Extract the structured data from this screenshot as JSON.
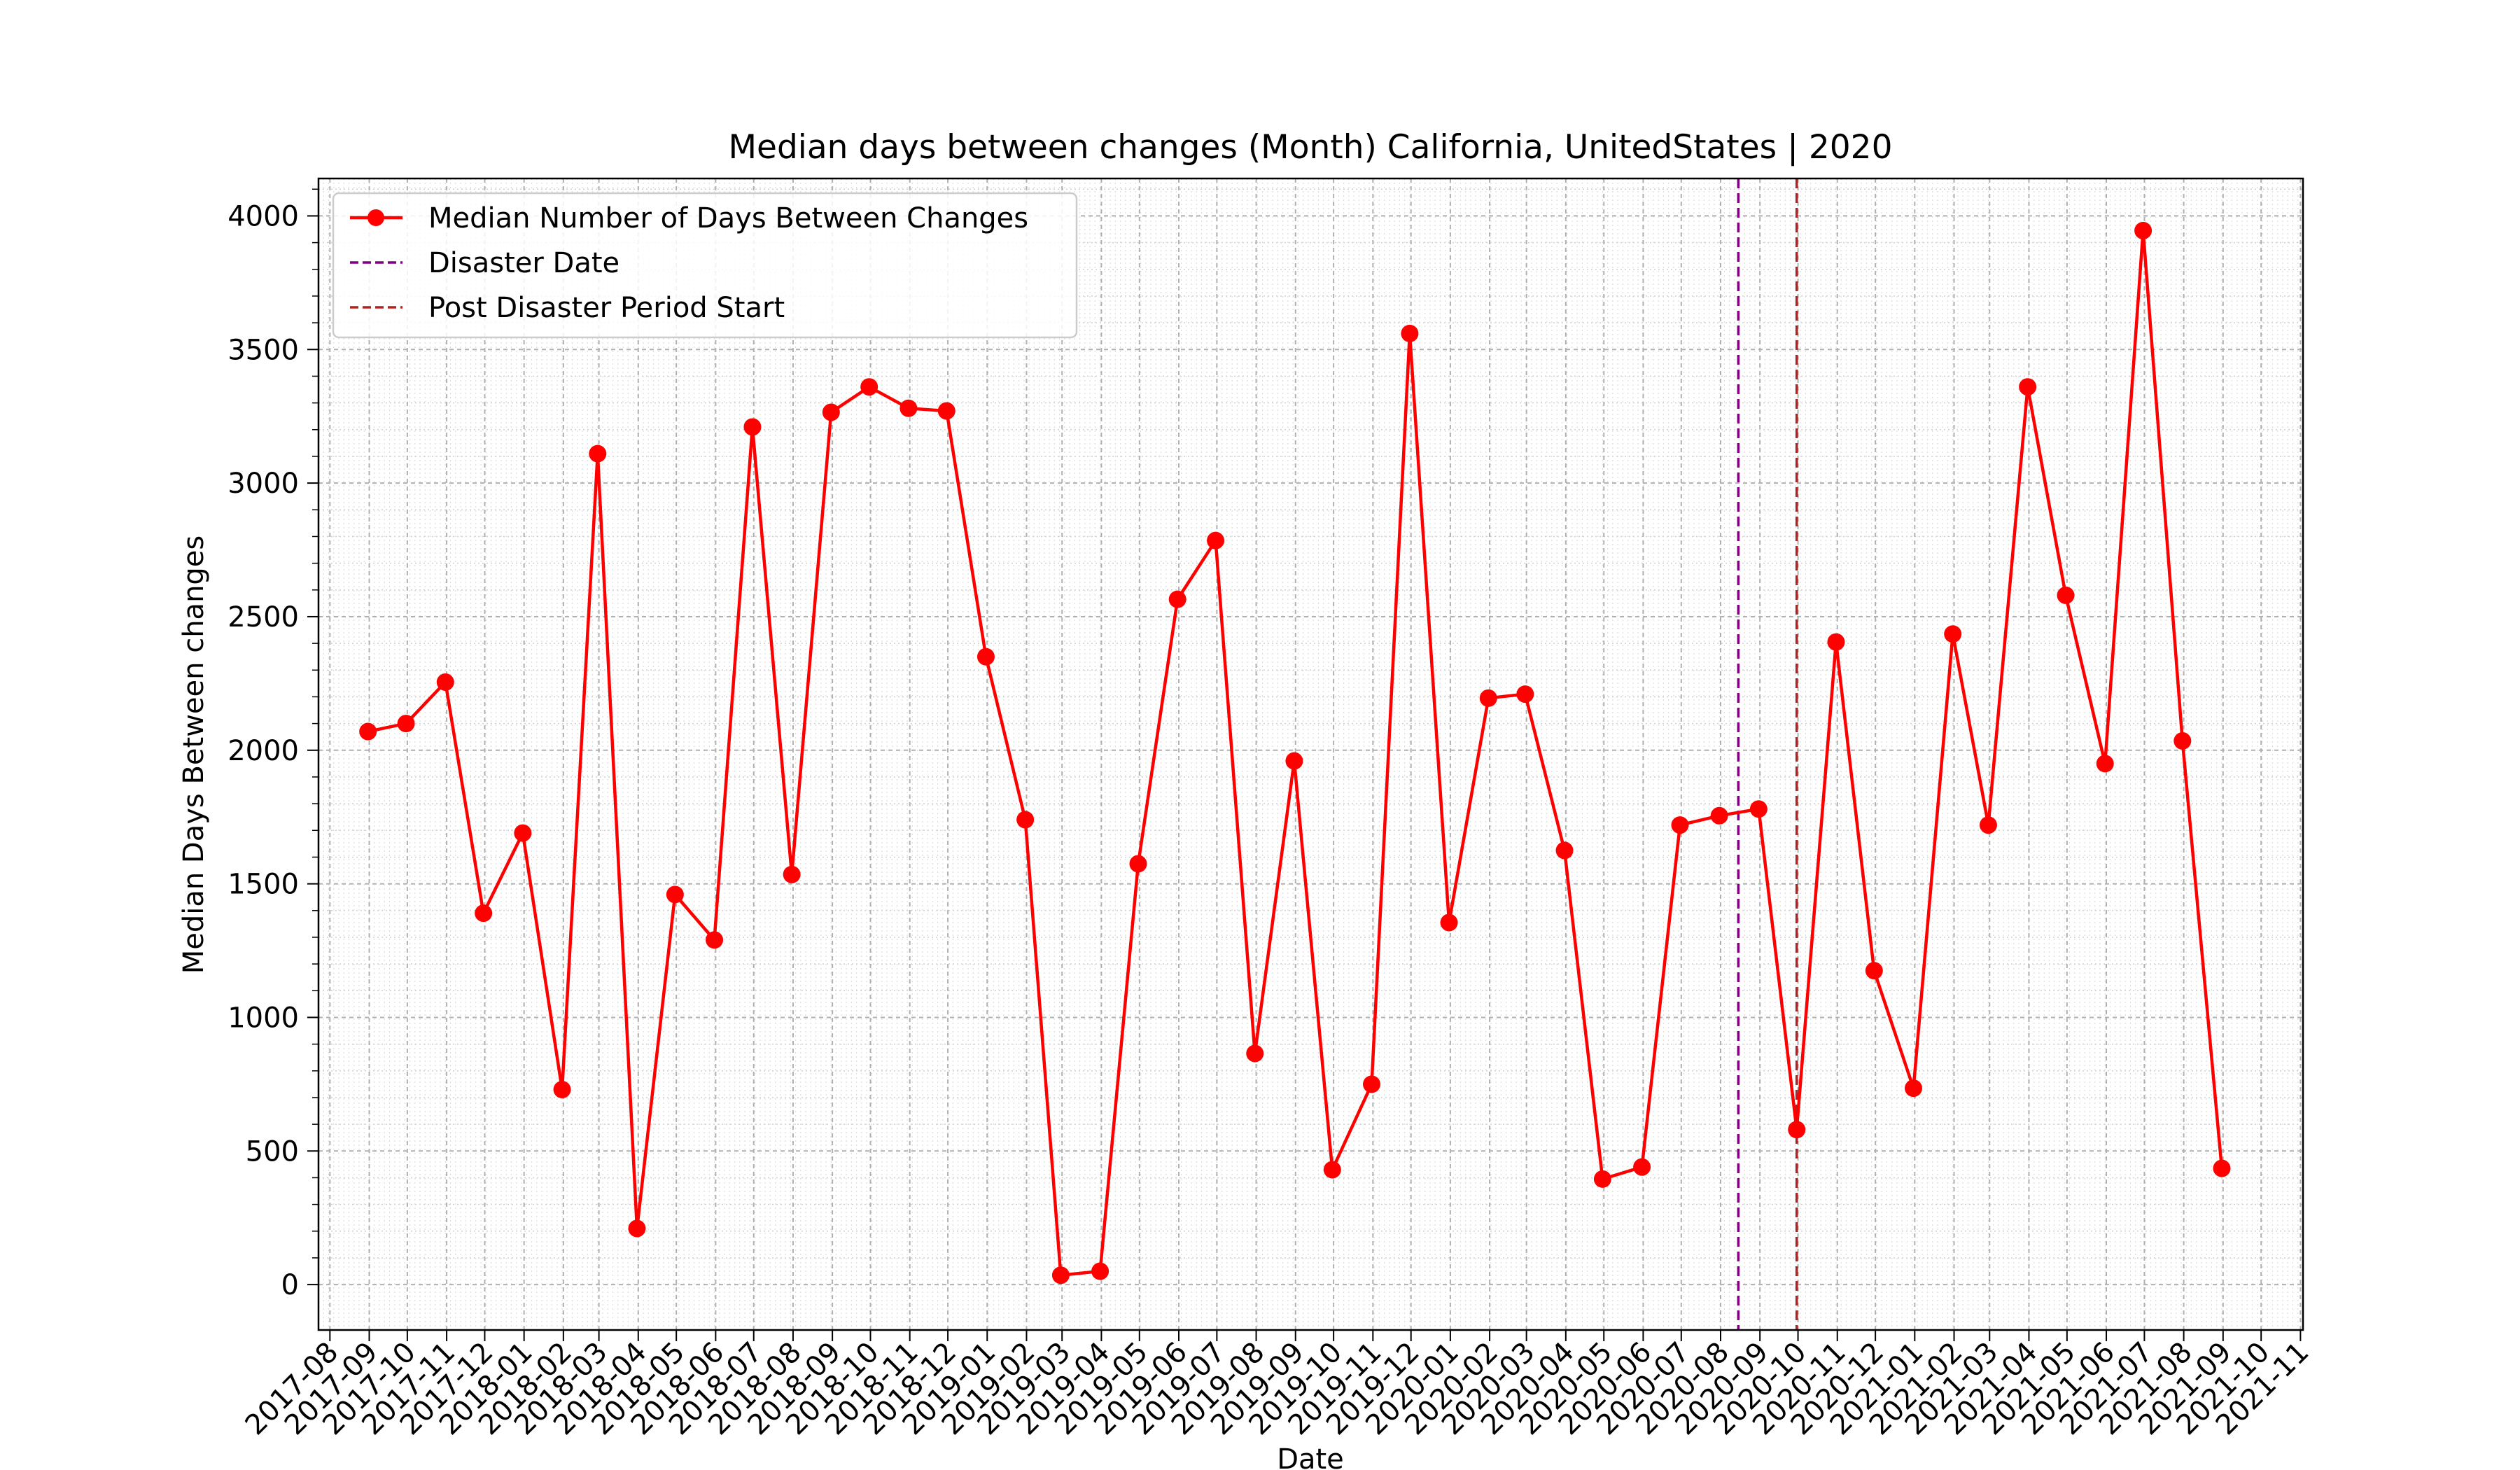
{
  "chart_data": {
    "type": "line",
    "title": "Median days between changes (Month) California, UnitedStates | 2020",
    "xlabel": "Date",
    "ylabel": "Median Days Between changes",
    "xlim": [
      "2017-07-23",
      "2021-11-03"
    ],
    "ylim": [
      -170,
      4140
    ],
    "yticks": [
      0,
      500,
      1000,
      1500,
      2000,
      2500,
      3000,
      3500,
      4000
    ],
    "xticks": [
      "2017-08",
      "2017-09",
      "2017-10",
      "2017-11",
      "2017-12",
      "2018-01",
      "2018-02",
      "2018-03",
      "2018-04",
      "2018-05",
      "2018-06",
      "2018-07",
      "2018-08",
      "2018-09",
      "2018-10",
      "2018-11",
      "2018-12",
      "2019-01",
      "2019-02",
      "2019-03",
      "2019-04",
      "2019-05",
      "2019-06",
      "2019-07",
      "2019-08",
      "2019-09",
      "2019-10",
      "2019-11",
      "2019-12",
      "2020-01",
      "2020-02",
      "2020-03",
      "2020-04",
      "2020-05",
      "2020-06",
      "2020-07",
      "2020-08",
      "2020-09",
      "2020-10",
      "2020-11",
      "2020-12",
      "2021-01",
      "2021-02",
      "2021-03",
      "2021-04",
      "2021-05",
      "2021-06",
      "2021-07",
      "2021-08",
      "2021-09",
      "2021-10",
      "2021-11"
    ],
    "grid": true,
    "legend_position": "top-left",
    "series": [
      {
        "name": "Median Number of Days Between Changes",
        "color": "#ff0000",
        "marker": "circle",
        "x": [
          "2017-08-31",
          "2017-09-30",
          "2017-10-31",
          "2017-11-30",
          "2017-12-31",
          "2018-01-31",
          "2018-02-28",
          "2018-03-31",
          "2018-04-30",
          "2018-05-31",
          "2018-06-30",
          "2018-07-31",
          "2018-08-31",
          "2018-09-30",
          "2018-10-31",
          "2018-11-30",
          "2018-12-31",
          "2019-01-31",
          "2019-02-28",
          "2019-03-31",
          "2019-04-30",
          "2019-05-31",
          "2019-06-30",
          "2019-07-31",
          "2019-08-31",
          "2019-09-30",
          "2019-10-31",
          "2019-11-30",
          "2019-12-31",
          "2020-01-31",
          "2020-02-29",
          "2020-03-31",
          "2020-04-30",
          "2020-05-31",
          "2020-06-30",
          "2020-07-31",
          "2020-08-31",
          "2020-09-30",
          "2020-10-31",
          "2020-11-30",
          "2020-12-31",
          "2021-01-31",
          "2021-02-28",
          "2021-03-31",
          "2021-04-30",
          "2021-05-31",
          "2021-06-30",
          "2021-07-31",
          "2021-08-31"
        ],
        "y": [
          2070,
          2100,
          2255,
          1390,
          1690,
          730,
          3110,
          210,
          1460,
          1290,
          3210,
          1535,
          3265,
          3360,
          3280,
          3270,
          2350,
          1740,
          35,
          50,
          1575,
          2565,
          2785,
          865,
          1960,
          430,
          750,
          3560,
          1355,
          2195,
          2210,
          1625,
          395,
          440,
          1720,
          1755,
          1780,
          580,
          2405,
          1175,
          735,
          2435,
          1720,
          3360,
          2580,
          1950,
          3945,
          2035,
          435
        ]
      }
    ],
    "vlines": [
      {
        "name": "Disaster Date",
        "x": "2020-08-15",
        "color": "#800080",
        "style": "dashed"
      },
      {
        "name": "Post Disaster Period Start",
        "x": "2020-09-30",
        "color": "#b22222",
        "style": "dashed"
      }
    ]
  }
}
